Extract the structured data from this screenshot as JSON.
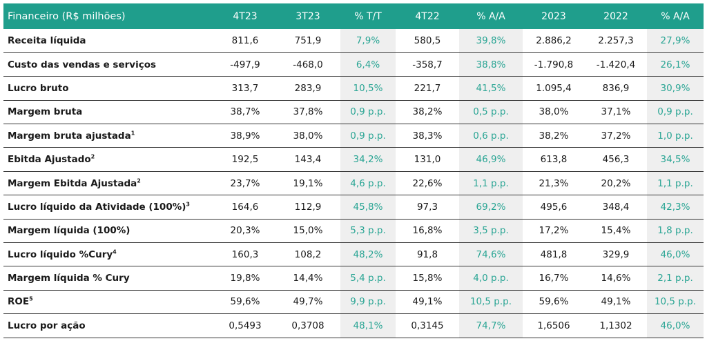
{
  "header": [
    "Financeiro (R$ milhões)",
    "4T23",
    "3T23",
    "% T/T",
    "4T22",
    "% A/A",
    "2023",
    "2022",
    "% A/A"
  ],
  "rows": [
    {
      "label": "Receita líquida",
      "sup": "",
      "cells": [
        "811,6",
        "751,9",
        "7,9%",
        "580,5",
        "39,8%",
        "2.886,2",
        "2.257,3",
        "27,9%"
      ]
    },
    {
      "label": "Custo das vendas e serviços",
      "sup": "",
      "cells": [
        "-497,9",
        "-468,0",
        "6,4%",
        "-358,7",
        "38,8%",
        "-1.790,8",
        "-1.420,4",
        "26,1%"
      ]
    },
    {
      "label": "Lucro bruto",
      "sup": "",
      "cells": [
        "313,7",
        "283,9",
        "10,5%",
        "221,7",
        "41,5%",
        "1.095,4",
        "836,9",
        "30,9%"
      ]
    },
    {
      "label": "Margem bruta",
      "sup": "",
      "cells": [
        "38,7%",
        "37,8%",
        "0,9 p.p.",
        "38,2%",
        "0,5 p.p.",
        "38,0%",
        "37,1%",
        "0,9 p.p."
      ]
    },
    {
      "label": "Margem bruta ajustada",
      "sup": "1",
      "cells": [
        "38,9%",
        "38,0%",
        "0,9 p.p.",
        "38,3%",
        "0,6 p.p.",
        "38,2%",
        "37,2%",
        "1,0 p.p."
      ]
    },
    {
      "label": "Ebitda Ajustado",
      "sup": "2",
      "cells": [
        "192,5",
        "143,4",
        "34,2%",
        "131,0",
        "46,9%",
        "613,8",
        "456,3",
        "34,5%"
      ]
    },
    {
      "label": "Margem Ebitda Ajustada",
      "sup": "2",
      "cells": [
        "23,7%",
        "19,1%",
        "4,6 p.p.",
        "22,6%",
        "1,1 p.p.",
        "21,3%",
        "20,2%",
        "1,1 p.p."
      ]
    },
    {
      "label": "Lucro líquido da Atividade (100%)",
      "sup": "3",
      "cells": [
        "164,6",
        "112,9",
        "45,8%",
        "97,3",
        "69,2%",
        "495,6",
        "348,4",
        "42,3%"
      ]
    },
    {
      "label": "Margem líquida (100%)",
      "sup": "",
      "cells": [
        "20,3%",
        "15,0%",
        "5,3 p.p.",
        "16,8%",
        "3,5 p.p.",
        "17,2%",
        "15,4%",
        "1,8 p.p."
      ]
    },
    {
      "label": "Lucro líquido %Cury",
      "sup": "4",
      "cells": [
        "160,3",
        "108,2",
        "48,2%",
        "91,8",
        "74,6%",
        "481,8",
        "329,9",
        "46,0%"
      ]
    },
    {
      "label": "Margem líquida % Cury",
      "sup": "",
      "cells": [
        "19,8%",
        "14,4%",
        "5,4 p.p.",
        "15,8%",
        "4,0 p.p.",
        "16,7%",
        "14,6%",
        "2,1 p.p."
      ]
    },
    {
      "label": "ROE",
      "sup": "5",
      "cells": [
        "59,6%",
        "49,7%",
        "9,9 p.p.",
        "49,1%",
        "10,5 p.p.",
        "59,6%",
        "49,1%",
        "10,5 p.p."
      ]
    },
    {
      "label": "Lucro por ação",
      "sup": "",
      "cells": [
        "0,5493",
        "0,3708",
        "48,1%",
        "0,3145",
        "74,7%",
        "1,6506",
        "1,1302",
        "46,0%"
      ]
    }
  ],
  "colors": {
    "header_bg": "#1f9e8c",
    "variation_text": "#2aa594",
    "variation_bg": "#efefef"
  }
}
